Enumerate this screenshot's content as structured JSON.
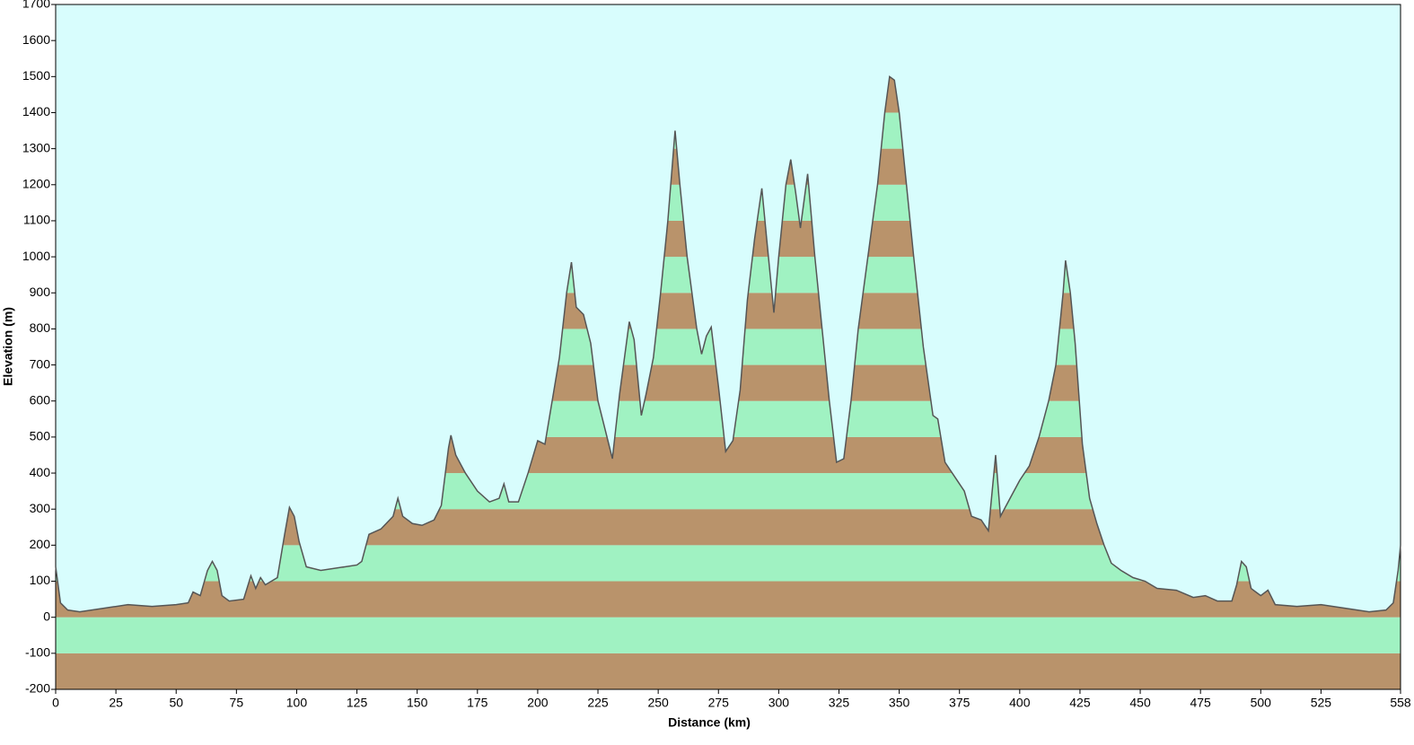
{
  "chart_data": {
    "type": "area",
    "x_label": "Distance (km)",
    "y_label": "Elevation (m)",
    "x": [
      0,
      2,
      5,
      10,
      20,
      30,
      40,
      50,
      55,
      57,
      60,
      63,
      65,
      67,
      69,
      72,
      78,
      81,
      83,
      85,
      87,
      92,
      95,
      97,
      99,
      101,
      104,
      110,
      120,
      125,
      127,
      130,
      135,
      140,
      142,
      144,
      148,
      152,
      157,
      160,
      163,
      164,
      166,
      170,
      175,
      180,
      184,
      186,
      188,
      192,
      196,
      200,
      203,
      206,
      209,
      212,
      214,
      216,
      219,
      222,
      225,
      228,
      231,
      234,
      236,
      238,
      240,
      243,
      245,
      248,
      251,
      254,
      257,
      259,
      262,
      266,
      268,
      270,
      272,
      275,
      278,
      281,
      284,
      287,
      290,
      293,
      295,
      298,
      300,
      303,
      305,
      307,
      309,
      312,
      315,
      318,
      321,
      324,
      327,
      330,
      333,
      337,
      341,
      344,
      346,
      348,
      350,
      353,
      356,
      360,
      364,
      366,
      369,
      373,
      377,
      380,
      384,
      387,
      390,
      392,
      396,
      400,
      404,
      408,
      412,
      415,
      418,
      419,
      421,
      423,
      426,
      429,
      432,
      435,
      438,
      442,
      447,
      452,
      457,
      465,
      472,
      477,
      482,
      488,
      490,
      492,
      494,
      496,
      500,
      503,
      506,
      515,
      525,
      535,
      545,
      552,
      555,
      557,
      558
    ],
    "values": [
      140,
      40,
      20,
      15,
      25,
      35,
      30,
      35,
      40,
      70,
      60,
      130,
      155,
      130,
      60,
      45,
      50,
      115,
      80,
      110,
      90,
      110,
      230,
      305,
      280,
      210,
      140,
      130,
      140,
      145,
      155,
      230,
      245,
      280,
      330,
      280,
      260,
      255,
      270,
      310,
      470,
      505,
      450,
      400,
      350,
      320,
      330,
      370,
      320,
      320,
      400,
      490,
      480,
      600,
      720,
      900,
      985,
      860,
      840,
      760,
      600,
      520,
      440,
      620,
      720,
      820,
      770,
      560,
      620,
      720,
      900,
      1100,
      1350,
      1200,
      1000,
      800,
      730,
      780,
      805,
      640,
      460,
      490,
      630,
      880,
      1050,
      1190,
      1050,
      845,
      1000,
      1200,
      1270,
      1180,
      1080,
      1230,
      1000,
      800,
      600,
      430,
      440,
      600,
      800,
      1000,
      1200,
      1400,
      1500,
      1490,
      1400,
      1200,
      1000,
      750,
      560,
      550,
      430,
      390,
      350,
      280,
      270,
      240,
      450,
      280,
      330,
      380,
      420,
      500,
      600,
      700,
      900,
      990,
      900,
      760,
      480,
      330,
      260,
      200,
      150,
      130,
      110,
      100,
      80,
      75,
      55,
      60,
      45,
      45,
      90,
      155,
      140,
      80,
      60,
      75,
      35,
      30,
      35,
      25,
      15,
      20,
      40,
      130,
      200
    ],
    "xlim": [
      0,
      558
    ],
    "xticks": [
      0,
      25,
      50,
      75,
      100,
      125,
      150,
      175,
      200,
      225,
      250,
      275,
      300,
      325,
      350,
      375,
      400,
      425,
      450,
      475,
      500,
      525,
      558
    ],
    "ylim": [
      -200,
      1700
    ],
    "yticks": [
      -200,
      -100,
      0,
      100,
      200,
      300,
      400,
      500,
      600,
      700,
      800,
      900,
      1000,
      1100,
      1200,
      1300,
      1400,
      1500,
      1600,
      1700
    ],
    "band_colors": [
      "#b9936b",
      "#a0f2c2"
    ],
    "line_color": "#555555",
    "background": "#d8fdfd"
  }
}
